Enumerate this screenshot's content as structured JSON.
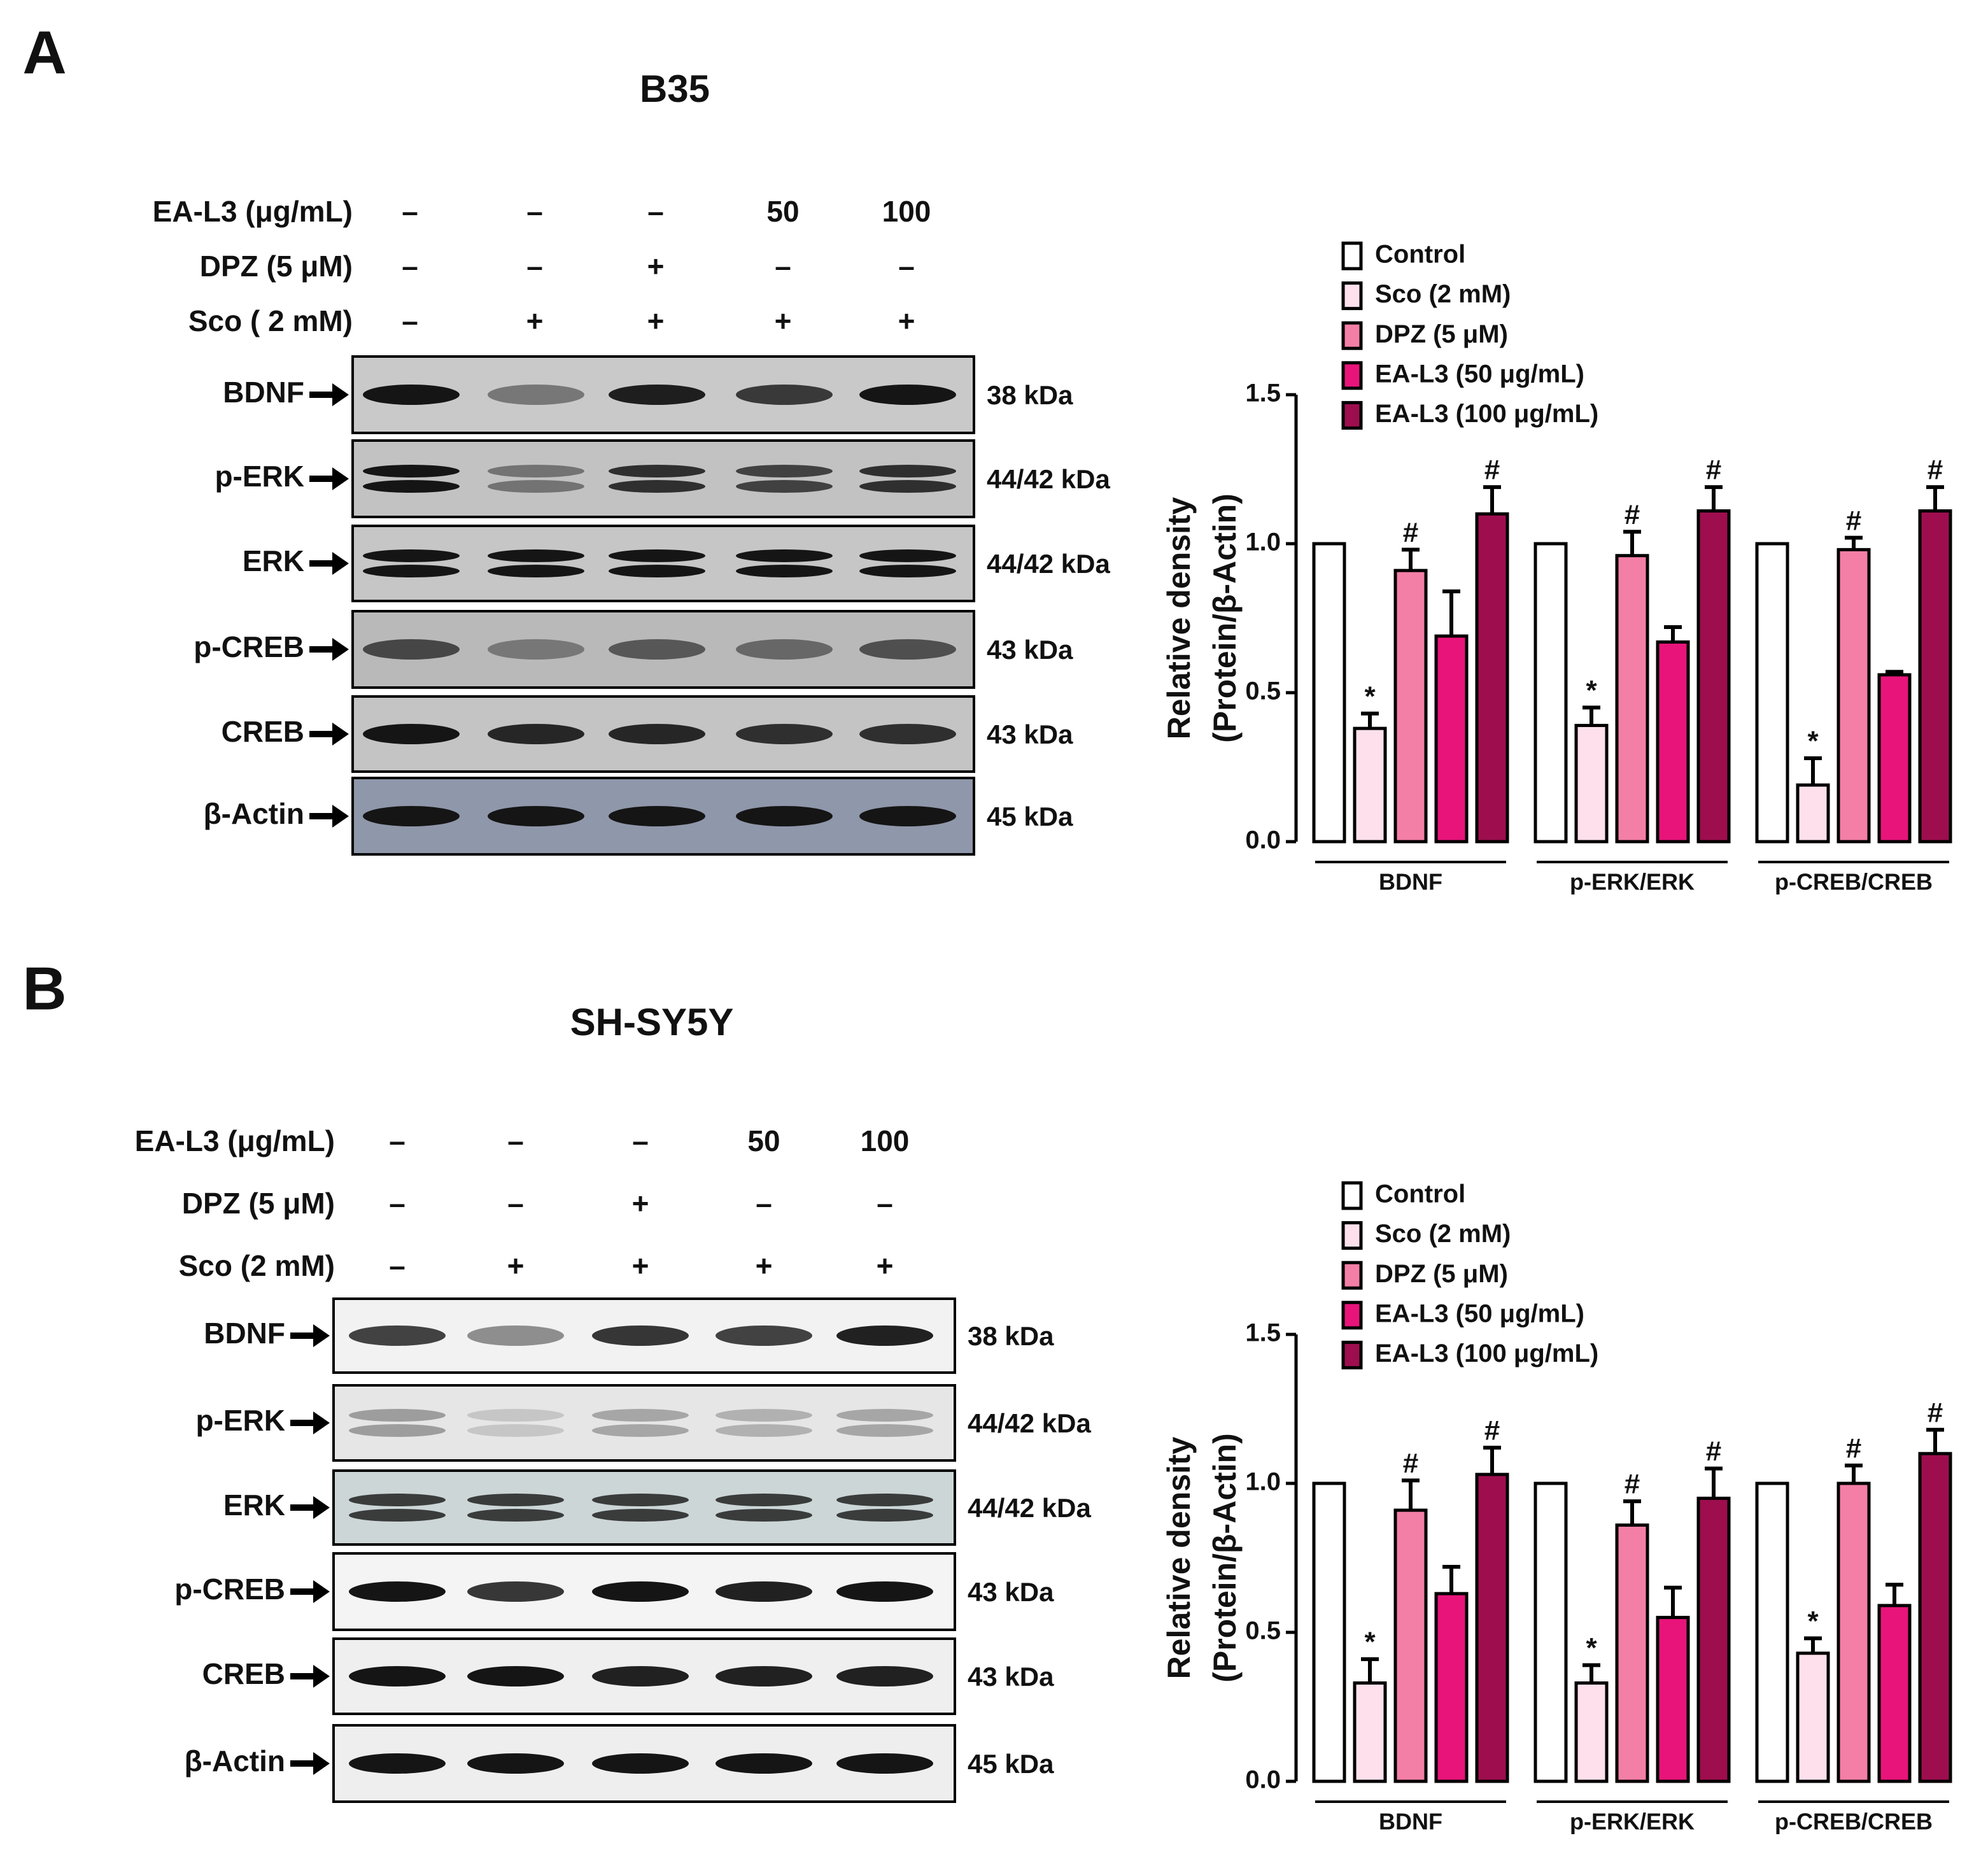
{
  "panels": [
    {
      "letter": "A",
      "title": "B35",
      "treatments": [
        {
          "label": "EA-L3 (μg/mL)",
          "values": [
            "–",
            "–",
            "–",
            "50",
            "100"
          ]
        },
        {
          "label": "DPZ (5 μM)",
          "values": [
            "–",
            "–",
            "+",
            "–",
            "–"
          ]
        },
        {
          "label": "Sco ( 2 mM)",
          "values": [
            "–",
            "+",
            "+",
            "+",
            "+"
          ]
        }
      ],
      "blots": [
        {
          "protein": "BDNF",
          "size": "38 kDa"
        },
        {
          "protein": "p-ERK",
          "size": "44/42 kDa"
        },
        {
          "protein": "ERK",
          "size": "44/42 kDa"
        },
        {
          "protein": "p-CREB",
          "size": "43 kDa"
        },
        {
          "protein": "CREB",
          "size": "43 kDa"
        },
        {
          "protein": "β-Actin",
          "size": "45 kDa"
        }
      ]
    },
    {
      "letter": "B",
      "title": "SH-SY5Y",
      "treatments": [
        {
          "label": "EA-L3 (μg/mL)",
          "values": [
            "–",
            "–",
            "–",
            "50",
            "100"
          ]
        },
        {
          "label": "DPZ (5 μM)",
          "values": [
            "–",
            "–",
            "+",
            "–",
            "–"
          ]
        },
        {
          "label": "Sco (2 mM)",
          "values": [
            "–",
            "+",
            "+",
            "+",
            "+"
          ]
        }
      ],
      "blots": [
        {
          "protein": "BDNF",
          "size": "38 kDa"
        },
        {
          "protein": "p-ERK",
          "size": "44/42 kDa"
        },
        {
          "protein": "ERK",
          "size": "44/42 kDa"
        },
        {
          "protein": "p-CREB",
          "size": "43 kDa"
        },
        {
          "protein": "CREB",
          "size": "43 kDa"
        },
        {
          "protein": "β-Actin",
          "size": "45 kDa"
        }
      ]
    }
  ],
  "chart_data": [
    {
      "type": "bar",
      "categories": [
        "BDNF",
        "p-ERK/ERK",
        "p-CREB/CREB"
      ],
      "ylabel": [
        "Relative density",
        "(Protein/β-Actin)"
      ],
      "ylim": [
        0,
        1.5
      ],
      "yticks": [
        {
          "value": 0,
          "label": "0.0"
        },
        0.5,
        {
          "value": 1,
          "label": "1.0"
        },
        1.5
      ],
      "legend": "upper left",
      "series": [
        {
          "name": "Control",
          "color": "#ffffff",
          "values": [
            1.0,
            1.0,
            1.0
          ],
          "errors": [
            null,
            null,
            null
          ]
        },
        {
          "name": "Sco (2 mM)",
          "color": "#fde0ec",
          "values": [
            0.38,
            0.39,
            0.19
          ],
          "errors": [
            0.05,
            0.06,
            0.09
          ],
          "annotations": [
            "*",
            "*",
            "*"
          ]
        },
        {
          "name": "DPZ (5 μM)",
          "color": "#f47fa6",
          "values": [
            0.91,
            0.96,
            0.98
          ],
          "errors": [
            0.07,
            0.08,
            0.04
          ],
          "annotations": [
            "#",
            "#",
            "#"
          ]
        },
        {
          "name": "EA-L3 (50 μg/mL)",
          "color": "#e8147a",
          "values": [
            0.69,
            0.67,
            0.56
          ],
          "errors": [
            0.15,
            0.05,
            0.01
          ]
        },
        {
          "name": "EA-L3 (100 μg/mL)",
          "color": "#9e0e4e",
          "values": [
            1.1,
            1.11,
            1.11
          ],
          "errors": [
            0.09,
            0.08,
            0.08
          ],
          "annotations": [
            "#",
            "#",
            "#"
          ]
        }
      ]
    },
    {
      "type": "bar",
      "categories": [
        "BDNF",
        "p-ERK/ERK",
        "p-CREB/CREB"
      ],
      "ylabel": [
        "Relative density",
        "(Protein/β-Actin)"
      ],
      "ylim": [
        0,
        1.5
      ],
      "yticks": [
        {
          "value": 0,
          "label": "0.0"
        },
        0.5,
        {
          "value": 1,
          "label": "1.0"
        },
        1.5
      ],
      "legend": "upper left",
      "series": [
        {
          "name": "Control",
          "color": "#ffffff",
          "values": [
            1.0,
            1.0,
            1.0
          ],
          "errors": [
            null,
            null,
            null
          ]
        },
        {
          "name": "Sco (2 mM)",
          "color": "#fde0ec",
          "values": [
            0.33,
            0.33,
            0.43
          ],
          "errors": [
            0.08,
            0.06,
            0.05
          ],
          "annotations": [
            "*",
            "*",
            "*"
          ]
        },
        {
          "name": "DPZ (5 μM)",
          "color": "#f47fa6",
          "values": [
            0.91,
            0.86,
            1.0
          ],
          "errors": [
            0.1,
            0.08,
            0.06
          ],
          "annotations": [
            "#",
            "#",
            "#"
          ]
        },
        {
          "name": "EA-L3 (50 μg/mL)",
          "color": "#e8147a",
          "values": [
            0.63,
            0.55,
            0.59
          ],
          "errors": [
            0.09,
            0.1,
            0.07
          ]
        },
        {
          "name": "EA-L3 (100 μg/mL)",
          "color": "#9e0e4e",
          "values": [
            1.03,
            0.95,
            1.1
          ],
          "errors": [
            0.09,
            0.1,
            0.08
          ],
          "annotations": [
            "#",
            "#",
            "#"
          ]
        }
      ]
    }
  ]
}
